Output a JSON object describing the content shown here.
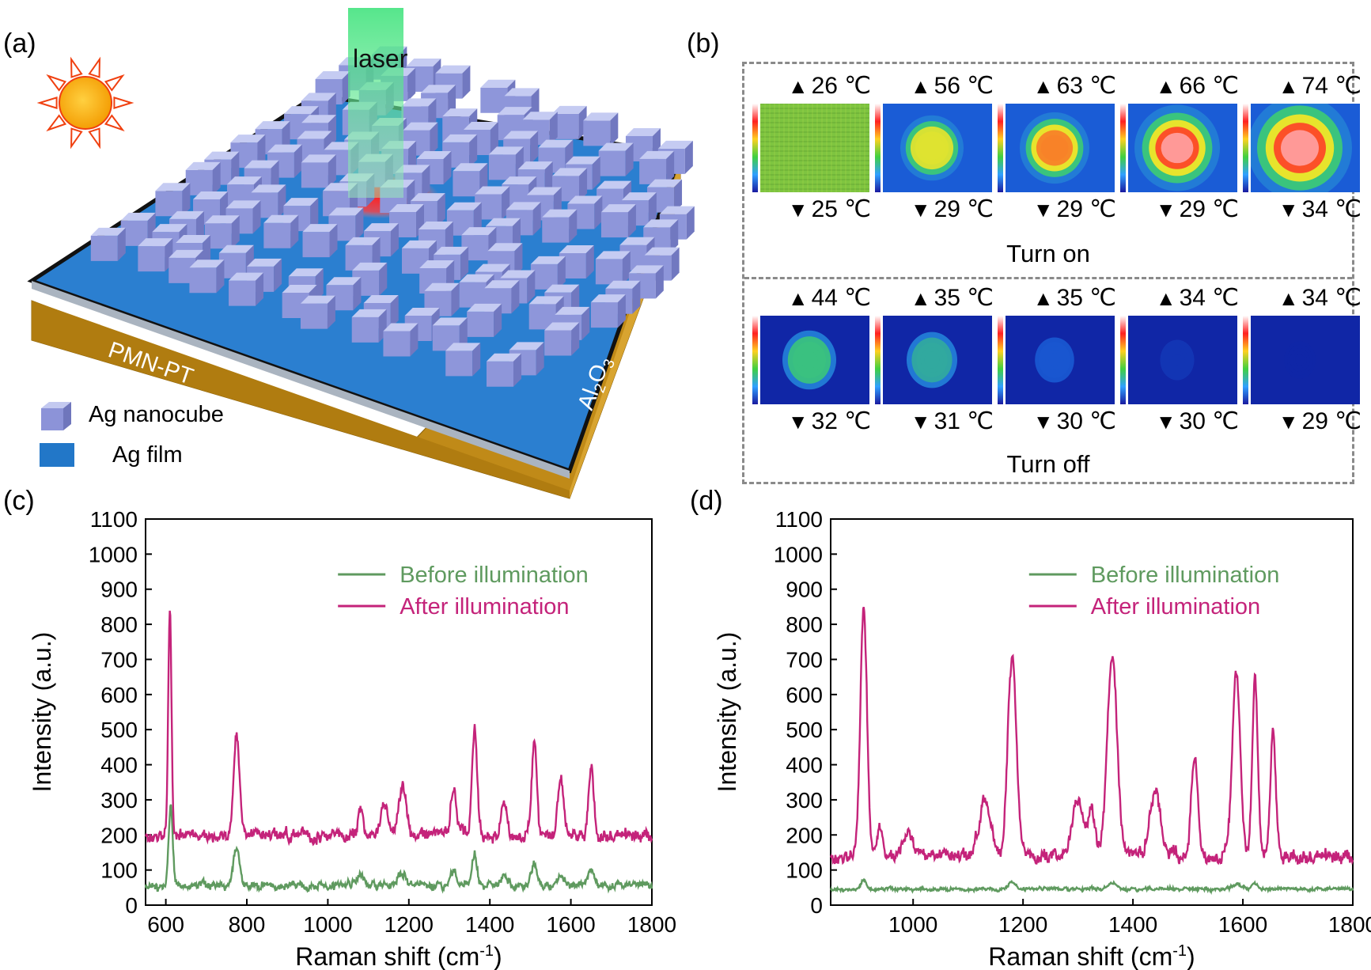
{
  "panels": {
    "a": "(a)",
    "b": "(b)",
    "c": "(c)",
    "d": "(d)"
  },
  "schematic": {
    "laser": "laser",
    "substrate": "PMN-PT",
    "dielectric_main": "Al",
    "dielectric_sub1": "2",
    "dielectric_mid": "O",
    "dielectric_sub2": "3",
    "legend_nanocube": "Ag nanocube",
    "legend_film": "Ag film",
    "colors": {
      "nanocube": "#9ea6e0",
      "film": "#1f78c8",
      "substrate": "#b8860b",
      "laser": "#3cd670",
      "hotspot": "#ff3040"
    }
  },
  "thermal": {
    "turn_on_label": "Turn on",
    "turn_off_label": "Turn off",
    "turn_on": [
      {
        "max": "26 ℃",
        "min": "25 ℃",
        "level": 0
      },
      {
        "max": "56 ℃",
        "min": "29 ℃",
        "level": 0.35
      },
      {
        "max": "63 ℃",
        "min": "29 ℃",
        "level": 0.45
      },
      {
        "max": "66 ℃",
        "min": "29 ℃",
        "level": 0.7
      },
      {
        "max": "74 ℃",
        "min": "34 ℃",
        "level": 1.0
      }
    ],
    "turn_off": [
      {
        "max": "44 ℃",
        "min": "32 ℃",
        "level": 0.35
      },
      {
        "max": "35 ℃",
        "min": "31 ℃",
        "level": 0.3
      },
      {
        "max": "35 ℃",
        "min": "30 ℃",
        "level": 0.12
      },
      {
        "max": "34 ℃",
        "min": "30 ℃",
        "level": 0.04
      },
      {
        "max": "34 ℃",
        "min": "29 ℃",
        "level": 0
      }
    ]
  },
  "chart_data": [
    {
      "type": "line",
      "panel": "(c)",
      "xlabel_main": "Raman shift (cm",
      "xlabel_sup": "-1",
      "xlabel_end": ")",
      "ylabel": "Intensity (a.u.)",
      "xlim": [
        550,
        1800
      ],
      "ylim": [
        0,
        1100
      ],
      "xticks": [
        "600",
        "800",
        "1000",
        "1200",
        "1400",
        "1600",
        "1800"
      ],
      "yticks": [
        "0",
        "100",
        "200",
        "300",
        "400",
        "500",
        "600",
        "700",
        "800",
        "900",
        "1000",
        "1100"
      ],
      "legend_position": "top-right",
      "series": [
        {
          "name": "Before illumination",
          "color": "#5f9a5f",
          "baseline": 55,
          "noise": 12,
          "peaks": [
            [
              612,
              230,
              5
            ],
            [
              775,
              105,
              8
            ],
            [
              1080,
              25,
              8
            ],
            [
              1185,
              30,
              10
            ],
            [
              1310,
              35,
              8
            ],
            [
              1362,
              85,
              6
            ],
            [
              1435,
              25,
              8
            ],
            [
              1510,
              60,
              7
            ],
            [
              1575,
              35,
              8
            ],
            [
              1650,
              40,
              7
            ]
          ]
        },
        {
          "name": "After illumination",
          "color": "#c4237a",
          "baseline": 200,
          "noise": 18,
          "peaks": [
            [
              610,
              640,
              4
            ],
            [
              775,
              285,
              7
            ],
            [
              1080,
              70,
              6
            ],
            [
              1140,
              80,
              8
            ],
            [
              1185,
              135,
              9
            ],
            [
              1310,
              130,
              7
            ],
            [
              1362,
              300,
              6
            ],
            [
              1435,
              100,
              7
            ],
            [
              1510,
              265,
              6
            ],
            [
              1575,
              155,
              7
            ],
            [
              1650,
              200,
              6
            ]
          ]
        }
      ]
    },
    {
      "type": "line",
      "panel": "(d)",
      "xlabel_main": "Raman shift (cm",
      "xlabel_sup": "-1",
      "xlabel_end": ")",
      "ylabel": "Intensity (a.u.)",
      "xlim": [
        850,
        1800
      ],
      "ylim": [
        0,
        1100
      ],
      "xticks": [
        "1000",
        "1200",
        "1400",
        "1600",
        "1800"
      ],
      "yticks": [
        "0",
        "100",
        "200",
        "300",
        "400",
        "500",
        "600",
        "700",
        "800",
        "900",
        "1000",
        "1100"
      ],
      "legend_position": "top-right",
      "series": [
        {
          "name": "Before illumination",
          "color": "#5f9a5f",
          "baseline": 45,
          "noise": 5,
          "peaks": [
            [
              910,
              25,
              5
            ],
            [
              1180,
              18,
              8
            ],
            [
              1362,
              15,
              8
            ],
            [
              1590,
              15,
              8
            ],
            [
              1622,
              18,
              6
            ]
          ]
        },
        {
          "name": "After illumination",
          "color": "#c4237a",
          "baseline": 140,
          "noise": 20,
          "peaks": [
            [
              910,
              710,
              6
            ],
            [
              940,
              80,
              5
            ],
            [
              990,
              70,
              10
            ],
            [
              1130,
              160,
              10
            ],
            [
              1180,
              570,
              8
            ],
            [
              1300,
              150,
              10
            ],
            [
              1325,
              120,
              6
            ],
            [
              1362,
              570,
              9
            ],
            [
              1440,
              170,
              10
            ],
            [
              1512,
              290,
              6
            ],
            [
              1588,
              530,
              7
            ],
            [
              1622,
              500,
              5
            ],
            [
              1655,
              350,
              5
            ]
          ]
        }
      ]
    }
  ]
}
